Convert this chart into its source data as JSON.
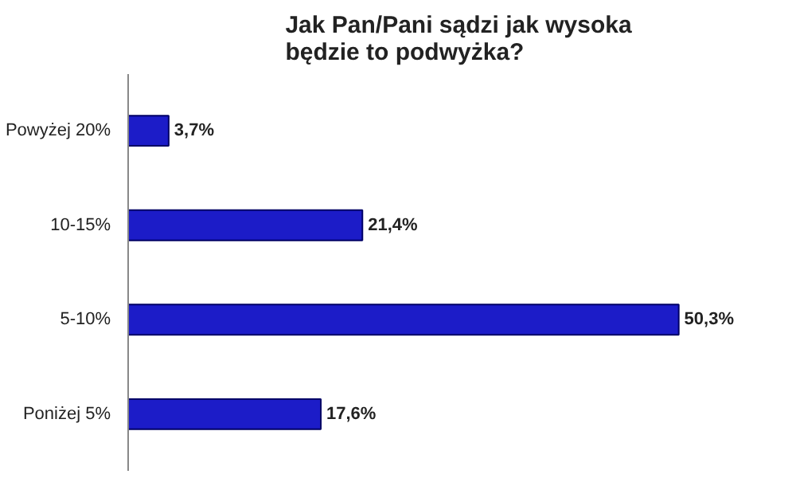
{
  "chart_data": {
    "type": "bar",
    "orientation": "horizontal",
    "title": "Jak Pan/Pani sądzi jak wysoka\nbędzie to podwyżka?",
    "categories": [
      "Powyżej 20%",
      "10-15%",
      "5-10%",
      "Poniżej 5%"
    ],
    "values": [
      3.7,
      21.4,
      50.3,
      17.6
    ],
    "value_labels": [
      "3,7%",
      "21,4%",
      "50,3%",
      "17,6%"
    ],
    "color": "#1c1cc8",
    "grid": false
  }
}
